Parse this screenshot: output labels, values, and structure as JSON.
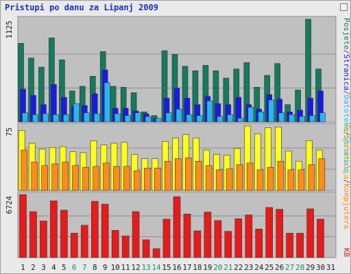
{
  "title": "Pristupi po danu za Lipanj 2009",
  "chart_data": [
    {
      "type": "bar",
      "panel": "visits",
      "ytick": "1125",
      "categories": [
        "1",
        "2",
        "3",
        "4",
        "5",
        "6",
        "7",
        "8",
        "9",
        "10",
        "11",
        "12",
        "13",
        "14",
        "15",
        "16",
        "17",
        "18",
        "19",
        "20",
        "21",
        "22",
        "23",
        "24",
        "25",
        "26",
        "27",
        "28",
        "29",
        "30",
        "31"
      ],
      "series": [
        {
          "name": "Posjete",
          "color": "#157a5e",
          "values": [
            860,
            700,
            600,
            920,
            680,
            340,
            390,
            500,
            770,
            390,
            380,
            320,
            110,
            70,
            780,
            740,
            610,
            560,
            620,
            560,
            480,
            580,
            650,
            380,
            510,
            640,
            190,
            350,
            1125,
            580,
            0
          ]
        },
        {
          "name": "Stranica",
          "color": "#1a1ae6",
          "values": [
            360,
            290,
            190,
            410,
            270,
            170,
            180,
            310,
            570,
            150,
            150,
            120,
            90,
            40,
            260,
            370,
            260,
            190,
            280,
            200,
            190,
            270,
            190,
            140,
            300,
            250,
            110,
            130,
            260,
            340,
            0
          ]
        },
        {
          "name": "Datoteka",
          "color": "#29b6f6",
          "values": [
            100,
            80,
            90,
            80,
            80,
            200,
            100,
            90,
            430,
            90,
            70,
            100,
            60,
            40,
            100,
            140,
            80,
            70,
            230,
            60,
            80,
            40,
            160,
            110,
            240,
            100,
            80,
            60,
            70,
            100,
            0
          ]
        }
      ]
    },
    {
      "type": "bar",
      "panel": "kb",
      "ytick": "75",
      "categories": [
        "1",
        "2",
        "3",
        "4",
        "5",
        "6",
        "7",
        "8",
        "9",
        "10",
        "11",
        "12",
        "13",
        "14",
        "15",
        "16",
        "17",
        "18",
        "19",
        "20",
        "21",
        "22",
        "23",
        "24",
        "25",
        "26",
        "27",
        "28",
        "29",
        "30",
        "31"
      ],
      "series": [
        {
          "name": "Posjetitelja",
          "color": "#ffff1a",
          "values": [
            70,
            55,
            48,
            50,
            51,
            45,
            44,
            58,
            53,
            55,
            56,
            42,
            37,
            37,
            57,
            61,
            65,
            61,
            47,
            42,
            41,
            49,
            75,
            66,
            73,
            74,
            46,
            34,
            58,
            47,
            0
          ]
        },
        {
          "name": "Kompjutera",
          "color": "#ff8c1a",
          "values": [
            47,
            33,
            29,
            31,
            33,
            29,
            27,
            28,
            32,
            28,
            28,
            23,
            26,
            26,
            34,
            37,
            38,
            34,
            29,
            24,
            25,
            30,
            32,
            24,
            27,
            34,
            24,
            24,
            30,
            37,
            0
          ]
        }
      ]
    },
    {
      "type": "bar",
      "panel": "traffic",
      "ytick": "6724",
      "categories": [
        "1",
        "2",
        "3",
        "4",
        "5",
        "6",
        "7",
        "8",
        "9",
        "10",
        "11",
        "12",
        "13",
        "14",
        "15",
        "16",
        "17",
        "18",
        "19",
        "20",
        "21",
        "22",
        "23",
        "24",
        "25",
        "26",
        "27",
        "28",
        "29",
        "30",
        "31"
      ],
      "series": [
        {
          "name": "KB",
          "color": "#e81a1a",
          "values": [
            6724,
            4900,
            3900,
            6050,
            5050,
            2600,
            3450,
            6000,
            5700,
            2900,
            2300,
            4900,
            1900,
            950,
            4100,
            6500,
            4650,
            2850,
            4850,
            3950,
            2800,
            4150,
            4550,
            3050,
            5350,
            5150,
            2600,
            2600,
            5200,
            4100,
            0
          ]
        }
      ]
    }
  ],
  "day_colors": {
    "weekday": "#1a1a1a",
    "weekend": "#1f8c5e"
  },
  "weekend_days": [
    "6",
    "7",
    "13",
    "14",
    "20",
    "21",
    "27",
    "28"
  ],
  "legend_right_top": [
    {
      "text": "Posjete",
      "color": "#157a5e"
    },
    {
      "text": "/",
      "color": "#555555"
    },
    {
      "text": "Stranica",
      "color": "#1a1ae6"
    },
    {
      "text": "/",
      "color": "#555555"
    },
    {
      "text": "Datoteka",
      "color": "#29b6f6"
    },
    {
      "text": "/",
      "color": "#555555"
    },
    {
      "text": "Stranica",
      "color": "#29b6f6"
    }
  ],
  "legend_right_mid": [
    {
      "text": "Posjetitelja",
      "color": "#d6b000"
    },
    {
      "text": "/",
      "color": "#555555"
    },
    {
      "text": "Kompjutera",
      "color": "#ff8c1a"
    }
  ],
  "legend_right_bottom": [
    {
      "text": "KB",
      "color": "#e81a1a"
    }
  ]
}
